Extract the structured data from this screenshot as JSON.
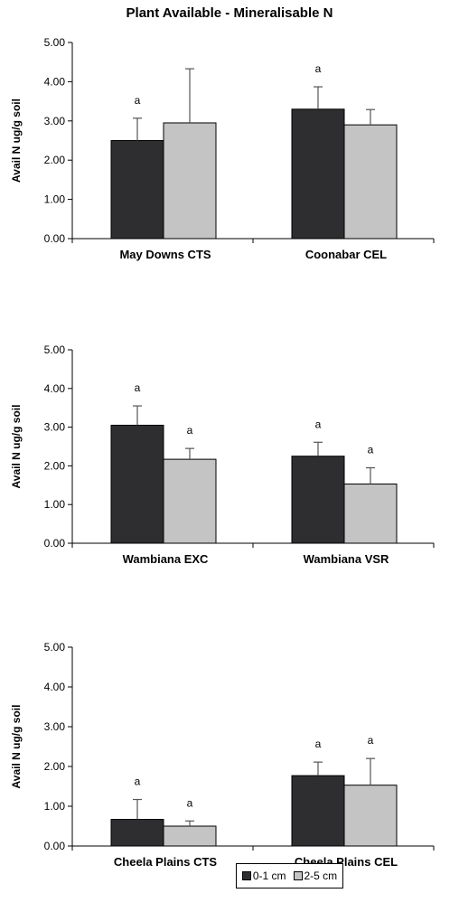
{
  "title": "Plant Available  - Mineralisable  N",
  "colors": {
    "series_0_1": "#2e2e30",
    "series_2_5": "#c4c4c4",
    "axis": "#000000",
    "error_bar": "#555555"
  },
  "legend": {
    "items": [
      {
        "label": "0-1 cm"
      },
      {
        "label": "2-5 cm"
      }
    ]
  },
  "chart_data": [
    {
      "type": "bar",
      "ylabel": "Avail N ug/g soil",
      "ylim": [
        0,
        5
      ],
      "yticks": [
        "0.00",
        "1.00",
        "2.00",
        "3.00",
        "4.00",
        "5.00"
      ],
      "categories": [
        "May Downs CTS",
        "Coonabar CEL"
      ],
      "series": [
        {
          "name": "0-1 cm",
          "values": [
            2.5,
            3.3
          ],
          "errors": [
            0.57,
            0.57
          ],
          "labels": [
            "a",
            "a"
          ]
        },
        {
          "name": "2-5 cm",
          "values": [
            2.95,
            2.9
          ],
          "errors": [
            1.38,
            0.39
          ],
          "labels": [
            "",
            ""
          ]
        }
      ]
    },
    {
      "type": "bar",
      "ylabel": "Avail N ug/g soil",
      "ylim": [
        0,
        5
      ],
      "yticks": [
        "0.00",
        "1.00",
        "2.00",
        "3.00",
        "4.00",
        "5.00"
      ],
      "categories": [
        "Wambiana EXC",
        "Wambiana VSR"
      ],
      "series": [
        {
          "name": "0-1 cm",
          "values": [
            3.05,
            2.25
          ],
          "errors": [
            0.5,
            0.36
          ],
          "labels": [
            "a",
            "a"
          ]
        },
        {
          "name": "2-5 cm",
          "values": [
            2.17,
            1.53
          ],
          "errors": [
            0.28,
            0.42
          ],
          "labels": [
            "a",
            "a"
          ]
        }
      ]
    },
    {
      "type": "bar",
      "ylabel": "Avail N ug/g soil",
      "ylim": [
        0,
        5
      ],
      "yticks": [
        "0.00",
        "1.00",
        "2.00",
        "3.00",
        "4.00",
        "5.00"
      ],
      "categories": [
        "Cheela Plains CTS",
        "Cheela Plains CEL"
      ],
      "series": [
        {
          "name": "0-1 cm",
          "values": [
            0.67,
            1.77
          ],
          "errors": [
            0.5,
            0.34
          ],
          "labels": [
            "a",
            "a"
          ]
        },
        {
          "name": "2-5 cm",
          "values": [
            0.5,
            1.53
          ],
          "errors": [
            0.13,
            0.67
          ],
          "labels": [
            "a",
            "a"
          ]
        }
      ]
    }
  ]
}
